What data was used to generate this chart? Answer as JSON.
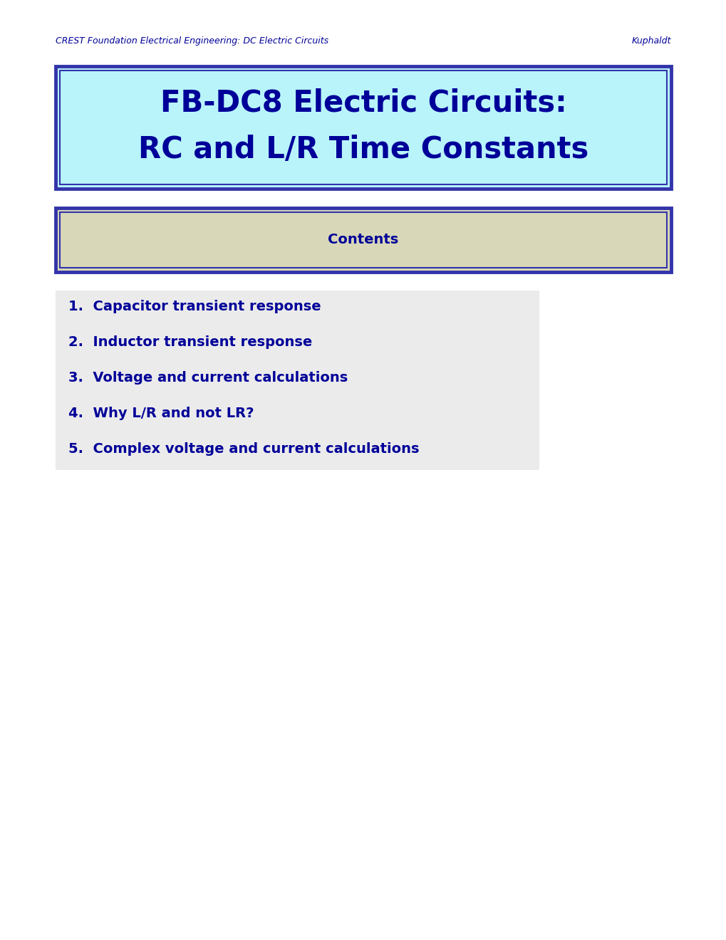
{
  "header_left": "CREST Foundation Electrical Engineering: DC Electric Circuits",
  "header_right": "Kuphaldt",
  "title_line1": "FB-DC8 Electric Circuits:",
  "title_line2": "RC and L/R Time Constants",
  "title_bg_color": "#b8f4fa",
  "title_border_color": "#3333aa",
  "title_text_color": "#000099",
  "contents_label": "Contents",
  "contents_bg_color": "#d8d8b8",
  "contents_border_color": "#3333aa",
  "contents_text_color": "#000099",
  "items_bg_color": "#ebebeb",
  "items_text_color": "#000099",
  "items": [
    "1.  Capacitor transient response",
    "2.  Inductor transient response",
    "3.  Voltage and current calculations",
    "4.  Why L/R and not LR?",
    "5.  Complex voltage and current calculations"
  ],
  "page_bg_color": "#ffffff",
  "header_text_color": "#000099",
  "header_font_size": 9,
  "title_font_size": 30,
  "contents_font_size": 14,
  "items_font_size": 14
}
